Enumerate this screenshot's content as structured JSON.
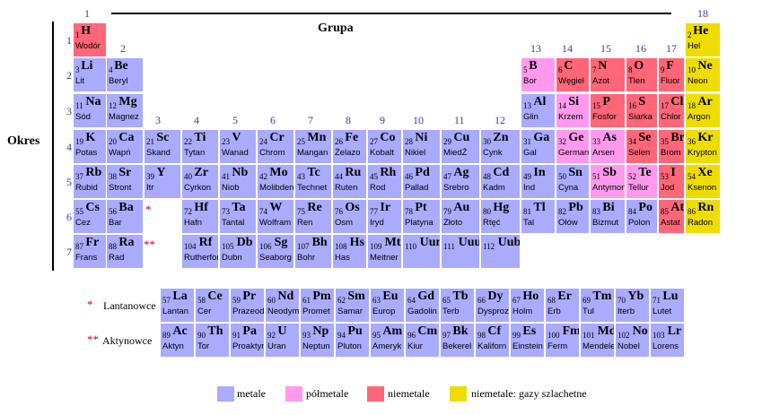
{
  "title_group": "Grupa",
  "title_period": "Okres",
  "group_numbers": [
    "1",
    "2",
    "3",
    "4",
    "5",
    "6",
    "7",
    "8",
    "9",
    "10",
    "11",
    "12",
    "13",
    "14",
    "15",
    "16",
    "17",
    "18"
  ],
  "period_numbers": [
    "1",
    "2",
    "3",
    "4",
    "5",
    "6",
    "7"
  ],
  "series_markers": {
    "lanthanide": "*",
    "actinide": "**"
  },
  "series_labels": {
    "lanthanide": "Lantanowce",
    "actinide": "Aktynowce"
  },
  "legend": [
    {
      "label": "metale",
      "color": "#aaaaff"
    },
    {
      "label": "półmetale",
      "color": "#ff99ee"
    },
    {
      "label": "niemetale",
      "color": "#ff6677"
    },
    {
      "label": "niemetale: gazy szlachetne",
      "color": "#eedd00"
    }
  ],
  "elements": [
    {
      "z": "1",
      "s": "H",
      "n": "Wodór",
      "t": "nm"
    },
    {
      "z": "2",
      "s": "He",
      "n": "Hel",
      "t": "ng"
    },
    {
      "z": "3",
      "s": "Li",
      "n": "Lit",
      "t": "m"
    },
    {
      "z": "4",
      "s": "Be",
      "n": "Beryl",
      "t": "m"
    },
    {
      "z": "5",
      "s": "B",
      "n": "Bor",
      "t": "pm"
    },
    {
      "z": "6",
      "s": "C",
      "n": "Węgiel",
      "t": "nm"
    },
    {
      "z": "7",
      "s": "N",
      "n": "Azot",
      "t": "nm"
    },
    {
      "z": "8",
      "s": "O",
      "n": "Tlen",
      "t": "nm"
    },
    {
      "z": "9",
      "s": "F",
      "n": "Fluor",
      "t": "nm"
    },
    {
      "z": "10",
      "s": "Ne",
      "n": "Neon",
      "t": "ng"
    },
    {
      "z": "11",
      "s": "Na",
      "n": "Sód",
      "t": "m"
    },
    {
      "z": "12",
      "s": "Mg",
      "n": "Magnez",
      "t": "m"
    },
    {
      "z": "13",
      "s": "Al",
      "n": "Glin",
      "t": "m"
    },
    {
      "z": "14",
      "s": "Si",
      "n": "Krzem",
      "t": "pm"
    },
    {
      "z": "15",
      "s": "P",
      "n": "Fosfor",
      "t": "nm"
    },
    {
      "z": "16",
      "s": "S",
      "n": "Siarka",
      "t": "nm"
    },
    {
      "z": "17",
      "s": "Cl",
      "n": "Chlor",
      "t": "nm"
    },
    {
      "z": "18",
      "s": "Ar",
      "n": "Argon",
      "t": "ng"
    },
    {
      "z": "19",
      "s": "K",
      "n": "Potas",
      "t": "m"
    },
    {
      "z": "20",
      "s": "Ca",
      "n": "Wapń",
      "t": "m"
    },
    {
      "z": "21",
      "s": "Sc",
      "n": "Skand",
      "t": "m"
    },
    {
      "z": "22",
      "s": "Ti",
      "n": "Tytan",
      "t": "m"
    },
    {
      "z": "23",
      "s": "V",
      "n": "Wanad",
      "t": "m"
    },
    {
      "z": "24",
      "s": "Cr",
      "n": "Chrom",
      "t": "m"
    },
    {
      "z": "25",
      "s": "Mn",
      "n": "Mangan",
      "t": "m"
    },
    {
      "z": "26",
      "s": "Fe",
      "n": "Żelazo",
      "t": "m"
    },
    {
      "z": "27",
      "s": "Co",
      "n": "Kobalt",
      "t": "m"
    },
    {
      "z": "28",
      "s": "Ni",
      "n": "Nikiel",
      "t": "m"
    },
    {
      "z": "29",
      "s": "Cu",
      "n": "MiedŹ",
      "t": "m"
    },
    {
      "z": "30",
      "s": "Zn",
      "n": "Cynk",
      "t": "m"
    },
    {
      "z": "31",
      "s": "Ga",
      "n": "Gal",
      "t": "m"
    },
    {
      "z": "32",
      "s": "Ge",
      "n": "German",
      "t": "pm"
    },
    {
      "z": "33",
      "s": "As",
      "n": "Arsen",
      "t": "pm"
    },
    {
      "z": "34",
      "s": "Se",
      "n": "Selen",
      "t": "nm"
    },
    {
      "z": "35",
      "s": "Br",
      "n": "Brom",
      "t": "nm"
    },
    {
      "z": "36",
      "s": "Kr",
      "n": "Krypton",
      "t": "ng"
    },
    {
      "z": "37",
      "s": "Rb",
      "n": "Rubid",
      "t": "m"
    },
    {
      "z": "38",
      "s": "Sr",
      "n": "Stront",
      "t": "m"
    },
    {
      "z": "39",
      "s": "Y",
      "n": "Itr",
      "t": "m"
    },
    {
      "z": "40",
      "s": "Zr",
      "n": "Cyrkon",
      "t": "m"
    },
    {
      "z": "41",
      "s": "Nb",
      "n": "Niob",
      "t": "m"
    },
    {
      "z": "42",
      "s": "Mo",
      "n": "Molibden",
      "t": "m"
    },
    {
      "z": "43",
      "s": "Tc",
      "n": "Technet",
      "t": "m"
    },
    {
      "z": "44",
      "s": "Ru",
      "n": "Ruten",
      "t": "m"
    },
    {
      "z": "45",
      "s": "Rh",
      "n": "Rod",
      "t": "m"
    },
    {
      "z": "46",
      "s": "Pd",
      "n": "Pallad",
      "t": "m"
    },
    {
      "z": "47",
      "s": "Ag",
      "n": "Srebro",
      "t": "m"
    },
    {
      "z": "48",
      "s": "Cd",
      "n": "Kadm",
      "t": "m"
    },
    {
      "z": "49",
      "s": "In",
      "n": "Ind",
      "t": "m"
    },
    {
      "z": "50",
      "s": "Sn",
      "n": "Cyna",
      "t": "m"
    },
    {
      "z": "51",
      "s": "Sb",
      "n": "Antymon",
      "t": "pm"
    },
    {
      "z": "52",
      "s": "Te",
      "n": "Tellur",
      "t": "pm"
    },
    {
      "z": "53",
      "s": "I",
      "n": "Jod",
      "t": "nm"
    },
    {
      "z": "54",
      "s": "Xe",
      "n": "Ksenon",
      "t": "ng"
    },
    {
      "z": "55",
      "s": "Cs",
      "n": "Cez",
      "t": "m"
    },
    {
      "z": "56",
      "s": "Ba",
      "n": "Bar",
      "t": "m"
    },
    {
      "z": "72",
      "s": "Hf",
      "n": "Hafn",
      "t": "m"
    },
    {
      "z": "73",
      "s": "Ta",
      "n": "Tantal",
      "t": "m"
    },
    {
      "z": "74",
      "s": "W",
      "n": "Wolfram",
      "t": "m"
    },
    {
      "z": "75",
      "s": "Re",
      "n": "Ren",
      "t": "m"
    },
    {
      "z": "76",
      "s": "Os",
      "n": "Osm",
      "t": "m"
    },
    {
      "z": "77",
      "s": "Ir",
      "n": "Iryd",
      "t": "m"
    },
    {
      "z": "78",
      "s": "Pt",
      "n": "Platyna",
      "t": "m"
    },
    {
      "z": "79",
      "s": "Au",
      "n": "Złoto",
      "t": "m"
    },
    {
      "z": "80",
      "s": "Hg",
      "n": "Rtęć",
      "t": "m"
    },
    {
      "z": "81",
      "s": "Tl",
      "n": "Tal",
      "t": "m"
    },
    {
      "z": "82",
      "s": "Pb",
      "n": "Ołów",
      "t": "m"
    },
    {
      "z": "83",
      "s": "Bi",
      "n": "Bizmut",
      "t": "m"
    },
    {
      "z": "84",
      "s": "Po",
      "n": "Polon",
      "t": "m"
    },
    {
      "z": "85",
      "s": "At",
      "n": "Astat",
      "t": "nm"
    },
    {
      "z": "86",
      "s": "Rn",
      "n": "Radon",
      "t": "ng"
    },
    {
      "z": "87",
      "s": "Fr",
      "n": "Frans",
      "t": "m"
    },
    {
      "z": "88",
      "s": "Ra",
      "n": "Rad",
      "t": "m"
    },
    {
      "z": "104",
      "s": "Rf",
      "n": "Rutherford",
      "t": "m"
    },
    {
      "z": "105",
      "s": "Db",
      "n": "Dubn",
      "t": "m"
    },
    {
      "z": "106",
      "s": "Sg",
      "n": "Seaborg",
      "t": "m"
    },
    {
      "z": "107",
      "s": "Bh",
      "n": "Bohr",
      "t": "m"
    },
    {
      "z": "108",
      "s": "Hs",
      "n": "Has",
      "t": "m"
    },
    {
      "z": "109",
      "s": "Mt",
      "n": "Meitner",
      "t": "m"
    },
    {
      "z": "110",
      "s": "Uun",
      "n": "",
      "t": "m"
    },
    {
      "z": "111",
      "s": "Uuu",
      "n": "",
      "t": "m"
    },
    {
      "z": "112",
      "s": "Uub",
      "n": "",
      "t": "m"
    },
    {
      "z": "57",
      "s": "La",
      "n": "Lantan",
      "t": "m"
    },
    {
      "z": "58",
      "s": "Ce",
      "n": "Cer",
      "t": "m"
    },
    {
      "z": "59",
      "s": "Pr",
      "n": "Prazeodym",
      "t": "m"
    },
    {
      "z": "60",
      "s": "Nd",
      "n": "Neodym",
      "t": "m"
    },
    {
      "z": "61",
      "s": "Pm",
      "n": "Promet",
      "t": "m"
    },
    {
      "z": "62",
      "s": "Sm",
      "n": "Samar",
      "t": "m"
    },
    {
      "z": "63",
      "s": "Eu",
      "n": "Europ",
      "t": "m"
    },
    {
      "z": "64",
      "s": "Gd",
      "n": "Gadolin",
      "t": "m"
    },
    {
      "z": "65",
      "s": "Tb",
      "n": "Terb",
      "t": "m"
    },
    {
      "z": "66",
      "s": "Dy",
      "n": "Dysproz",
      "t": "m"
    },
    {
      "z": "67",
      "s": "Ho",
      "n": "Holm",
      "t": "m"
    },
    {
      "z": "68",
      "s": "Er",
      "n": "Erb",
      "t": "m"
    },
    {
      "z": "69",
      "s": "Tm",
      "n": "Tul",
      "t": "m"
    },
    {
      "z": "70",
      "s": "Yb",
      "n": "Iterb",
      "t": "m"
    },
    {
      "z": "71",
      "s": "Lu",
      "n": "Lutet",
      "t": "m"
    },
    {
      "z": "89",
      "s": "Ac",
      "n": "Aktyn",
      "t": "m"
    },
    {
      "z": "90",
      "s": "Th",
      "n": "Tor",
      "t": "m"
    },
    {
      "z": "91",
      "s": "Pa",
      "n": "Proaktyn",
      "t": "m"
    },
    {
      "z": "92",
      "s": "U",
      "n": "Uran",
      "t": "m"
    },
    {
      "z": "93",
      "s": "Np",
      "n": "Neptun",
      "t": "m"
    },
    {
      "z": "94",
      "s": "Pu",
      "n": "Pluton",
      "t": "m"
    },
    {
      "z": "95",
      "s": "Am",
      "n": "Ameryk",
      "t": "m"
    },
    {
      "z": "96",
      "s": "Cm",
      "n": "Kiur",
      "t": "m"
    },
    {
      "z": "97",
      "s": "Bk",
      "n": "Bekerel",
      "t": "m"
    },
    {
      "z": "98",
      "s": "Cf",
      "n": "Kaliforn",
      "t": "m"
    },
    {
      "z": "99",
      "s": "Es",
      "n": "Einstein",
      "t": "m"
    },
    {
      "z": "100",
      "s": "Fm",
      "n": "Ferm",
      "t": "m"
    },
    {
      "z": "101",
      "s": "Md",
      "n": "Mendelew",
      "t": "m"
    },
    {
      "z": "102",
      "s": "No",
      "n": "Nobel",
      "t": "m"
    },
    {
      "z": "103",
      "s": "Lr",
      "n": "Lorens",
      "t": "m"
    }
  ]
}
